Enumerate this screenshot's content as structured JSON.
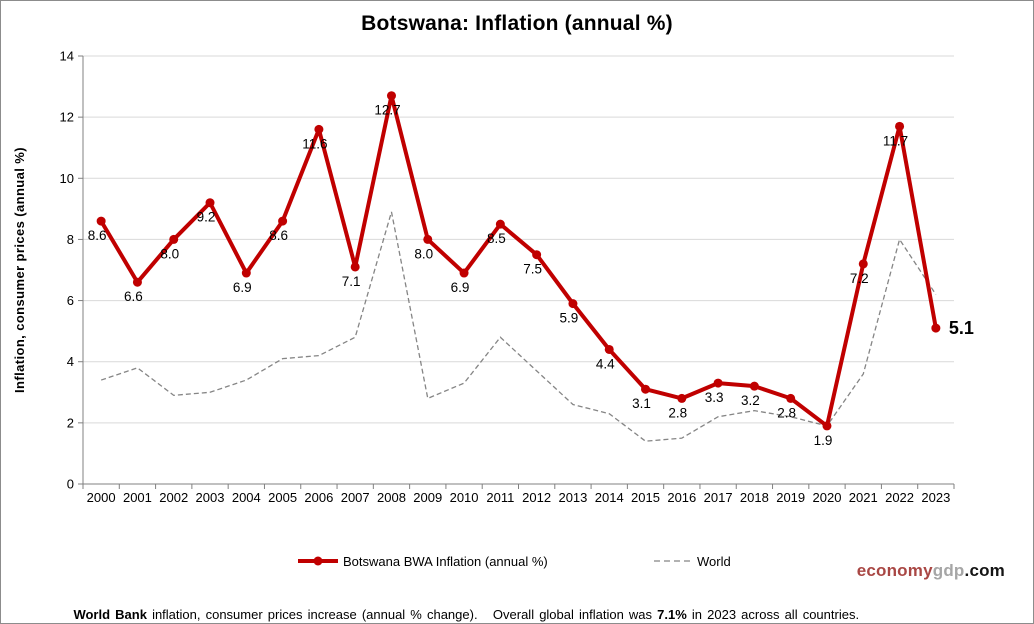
{
  "page": {
    "title": "Botswana: Inflation (annual %)"
  },
  "axes": {
    "y_title": "Inflation, consumer prices (annual %)"
  },
  "legend": {
    "botswana_label": "Botswana BWA Inflation (annual %)",
    "world_label": "World"
  },
  "watermark": {
    "economy": "economy",
    "gdp": "gdp",
    "com": ".com"
  },
  "footnote": {
    "bold1": "World Bank",
    "text1": " inflation, consumer prices increase (annual % change).   Overall global inflation was ",
    "bold2": "7.1%",
    "text2": " in 2023 across all countries."
  },
  "colors": {
    "botswana_line": "#C00000",
    "world_line": "#858585",
    "gridline": "#D9D9D9",
    "axis": "#808080",
    "text": "#000000",
    "watermark_red": "#A94744",
    "watermark_gray": "#A6A6A6"
  },
  "chart_data": {
    "type": "line",
    "title": "Botswana: Inflation (annual %)",
    "xlabel": "",
    "ylabel": "Inflation, consumer prices (annual %)",
    "ylim": [
      0,
      14
    ],
    "y_tick_step": 2,
    "grid": "horizontal",
    "legend_position": "bottom",
    "categories": [
      "2000",
      "2001",
      "2002",
      "2003",
      "2004",
      "2005",
      "2006",
      "2007",
      "2008",
      "2009",
      "2010",
      "2011",
      "2012",
      "2013",
      "2014",
      "2015",
      "2016",
      "2017",
      "2018",
      "2019",
      "2020",
      "2021",
      "2022",
      "2023"
    ],
    "series": [
      {
        "name": "Botswana BWA Inflation (annual %)",
        "color": "#C00000",
        "style": "solid-with-markers",
        "data_labels": true,
        "values": [
          8.6,
          6.6,
          8.0,
          9.2,
          6.9,
          8.6,
          11.6,
          7.1,
          12.7,
          8.0,
          6.9,
          8.5,
          7.5,
          5.9,
          4.4,
          3.1,
          2.8,
          3.3,
          3.2,
          2.8,
          1.9,
          7.2,
          11.7,
          5.1
        ]
      },
      {
        "name": "World",
        "color": "#858585",
        "style": "dashed",
        "data_labels": false,
        "values_estimated_from_gridlines": true,
        "values": [
          3.4,
          3.8,
          2.9,
          3.0,
          3.4,
          4.1,
          4.2,
          4.8,
          8.9,
          2.8,
          3.3,
          4.8,
          3.7,
          2.6,
          2.3,
          1.4,
          1.5,
          2.2,
          2.4,
          2.2,
          1.9,
          3.6,
          8.0,
          6.2
        ]
      }
    ],
    "highlighted_last_value": "5.1"
  }
}
